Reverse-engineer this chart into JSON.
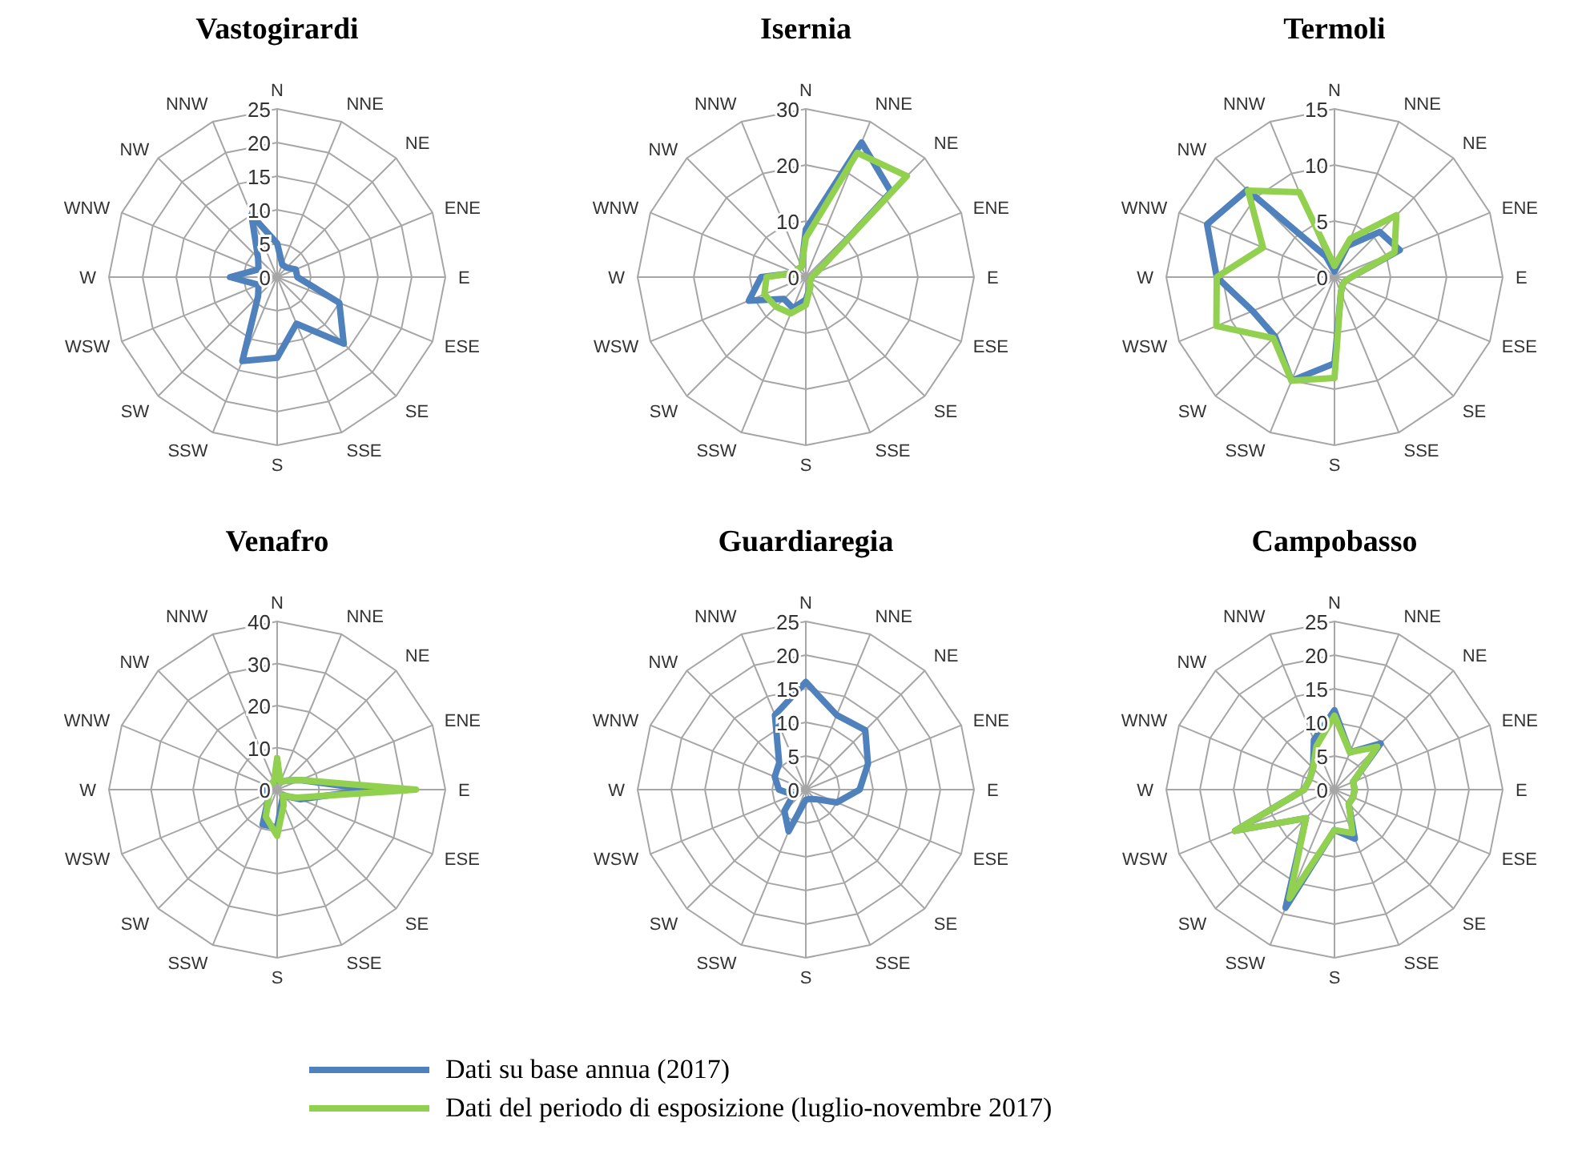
{
  "chart_data": [
    {
      "type": "radar",
      "title": "Vastogirardi",
      "categories": [
        "N",
        "NNE",
        "NE",
        "ENE",
        "E",
        "ESE",
        "SE",
        "SSE",
        "S",
        "SSW",
        "SW",
        "WSW",
        "W",
        "WNW",
        "NW",
        "NNW"
      ],
      "ylim": [
        0,
        25
      ],
      "yticks": [
        0,
        5,
        10,
        15,
        20,
        25
      ],
      "grid": true,
      "series": [
        {
          "color": "#4f81bd",
          "values": [
            5,
            2,
            2,
            3,
            3,
            10,
            14,
            7.5,
            12,
            13.5,
            4,
            3,
            7,
            3,
            4,
            10
          ]
        }
      ]
    },
    {
      "type": "radar",
      "title": "Isernia",
      "categories": [
        "N",
        "NNE",
        "NE",
        "ENE",
        "E",
        "ESE",
        "SE",
        "SSE",
        "S",
        "SSW",
        "SW",
        "WSW",
        "W",
        "WNW",
        "NW",
        "NNW"
      ],
      "ylim": [
        0,
        30
      ],
      "yticks": [
        0,
        10,
        20,
        30
      ],
      "grid": true,
      "legend": "bottom",
      "series": [
        {
          "name": "Dati su base annua (2017)",
          "color": "#4f81bd",
          "values": [
            8.5,
            26,
            21.5,
            2,
            1,
            1,
            1,
            2,
            4,
            6,
            5.5,
            11,
            8,
            2,
            2,
            2
          ]
        },
        {
          "name": "Dati del periodo di esposizione (luglio-novembre 2017)",
          "color": "#92d050",
          "values": [
            7,
            24,
            25.5,
            2,
            1,
            1,
            1,
            2,
            5,
            7,
            7.5,
            8,
            7,
            2,
            2,
            2
          ]
        }
      ]
    },
    {
      "type": "radar",
      "title": "Termoli",
      "categories": [
        "N",
        "NNE",
        "NE",
        "ENE",
        "E",
        "ESE",
        "SE",
        "SSE",
        "S",
        "SSW",
        "SW",
        "WSW",
        "W",
        "WNW",
        "NW",
        "NNW"
      ],
      "ylim": [
        0,
        15
      ],
      "yticks": [
        0,
        5,
        10,
        15
      ],
      "grid": true,
      "series": [
        {
          "color": "#4f81bd",
          "values": [
            0.5,
            3,
            5.7,
            6.3,
            1.5,
            1,
            1,
            1.5,
            7.7,
            10,
            7.5,
            7.9,
            10.5,
            12.3,
            11,
            2
          ]
        },
        {
          "color": "#92d050",
          "values": [
            1,
            3.7,
            7.8,
            5.8,
            1.5,
            1,
            1,
            1.5,
            9,
            10,
            7.7,
            11.4,
            10.5,
            6.9,
            10.9,
            8.2
          ]
        }
      ]
    },
    {
      "type": "radar",
      "title": "Venafro",
      "categories": [
        "N",
        "NNE",
        "NE",
        "ENE",
        "E",
        "ESE",
        "SE",
        "SSE",
        "S",
        "SSW",
        "SW",
        "WSW",
        "W",
        "WNW",
        "NW",
        "NNW"
      ],
      "ylim": [
        0,
        40
      ],
      "yticks": [
        0,
        10,
        20,
        30,
        40
      ],
      "grid": true,
      "series": [
        {
          "color": "#4f81bd",
          "values": [
            4,
            2,
            3,
            6,
            22,
            6,
            2,
            3,
            9,
            9,
            3,
            2,
            3,
            2,
            2,
            2
          ]
        },
        {
          "color": "#92d050",
          "values": [
            7.5,
            2,
            3,
            6,
            33,
            5,
            2,
            4,
            11,
            7,
            3,
            2,
            2,
            2,
            2,
            2
          ]
        }
      ]
    },
    {
      "type": "radar",
      "title": "Guardiaregia",
      "categories": [
        "N",
        "NNE",
        "NE",
        "ENE",
        "E",
        "ESE",
        "SE",
        "SSE",
        "S",
        "SSW",
        "SW",
        "WSW",
        "W",
        "WNW",
        "NW",
        "NNW"
      ],
      "ylim": [
        0,
        25
      ],
      "yticks": [
        0,
        5,
        10,
        15,
        20,
        25
      ],
      "grid": true,
      "series": [
        {
          "color": "#4f81bd",
          "values": [
            16,
            12,
            12.5,
            10,
            8,
            5,
            2,
            1.5,
            1.5,
            6.7,
            4.5,
            2,
            4,
            5,
            5.6,
            12
          ]
        }
      ]
    },
    {
      "type": "radar",
      "title": "Campobasso",
      "categories": [
        "N",
        "NNE",
        "NE",
        "ENE",
        "E",
        "ESE",
        "SE",
        "SSE",
        "S",
        "SSW",
        "SW",
        "WSW",
        "W",
        "WNW",
        "NW",
        "NNW"
      ],
      "ylim": [
        0,
        25
      ],
      "yticks": [
        0,
        5,
        10,
        15,
        20,
        25
      ],
      "grid": true,
      "series": [
        {
          "color": "#4f81bd",
          "values": [
            11.8,
            6,
            9.7,
            3,
            3,
            3,
            3,
            7.9,
            6,
            19,
            6,
            16,
            4.5,
            4,
            4.5,
            8
          ]
        },
        {
          "color": "#92d050",
          "values": [
            11,
            6,
            9,
            3,
            3,
            3,
            3,
            7,
            6,
            17.5,
            6,
            16,
            4.5,
            4,
            4.5,
            7
          ]
        }
      ]
    }
  ]
}
